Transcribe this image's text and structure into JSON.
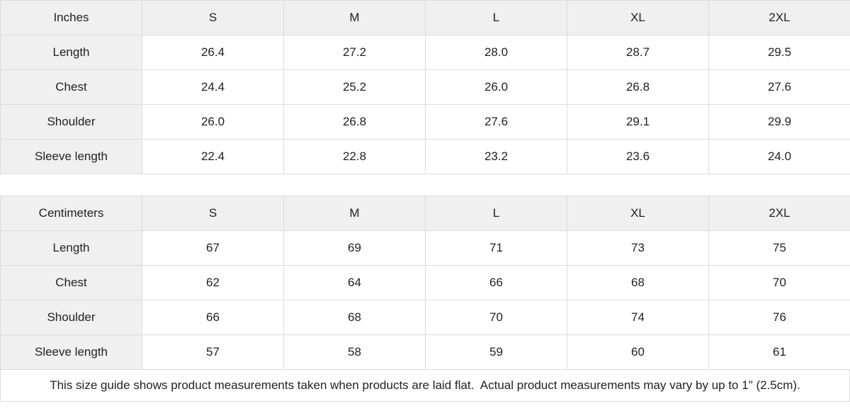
{
  "inches_table": {
    "unit_label": "Inches",
    "sizes": [
      "S",
      "M",
      "L",
      "XL",
      "2XL"
    ],
    "rows": [
      {
        "label": "Length",
        "values": [
          "26.4",
          "27.2",
          "28.0",
          "28.7",
          "29.5"
        ]
      },
      {
        "label": "Chest",
        "values": [
          "24.4",
          "25.2",
          "26.0",
          "26.8",
          "27.6"
        ]
      },
      {
        "label": "Shoulder",
        "values": [
          "26.0",
          "26.8",
          "27.6",
          "29.1",
          "29.9"
        ]
      },
      {
        "label": "Sleeve length",
        "values": [
          "22.4",
          "22.8",
          "23.2",
          "23.6",
          "24.0"
        ]
      }
    ]
  },
  "centimeters_table": {
    "unit_label": "Centimeters",
    "sizes": [
      "S",
      "M",
      "L",
      "XL",
      "2XL"
    ],
    "rows": [
      {
        "label": "Length",
        "values": [
          "67",
          "69",
          "71",
          "73",
          "75"
        ]
      },
      {
        "label": "Chest",
        "values": [
          "62",
          "64",
          "66",
          "68",
          "70"
        ]
      },
      {
        "label": "Shoulder",
        "values": [
          "66",
          "68",
          "70",
          "74",
          "76"
        ]
      },
      {
        "label": "Sleeve length",
        "values": [
          "57",
          "58",
          "59",
          "60",
          "61"
        ]
      }
    ]
  },
  "footer": {
    "note": "This size guide shows product measurements taken when products are laid flat.  Actual product measurements may vary by up to 1\" (2.5cm)."
  },
  "colors": {
    "header_background": "#f0f0f0",
    "cell_background": "#ffffff",
    "border": "#dcdcdc",
    "text": "#222222"
  }
}
